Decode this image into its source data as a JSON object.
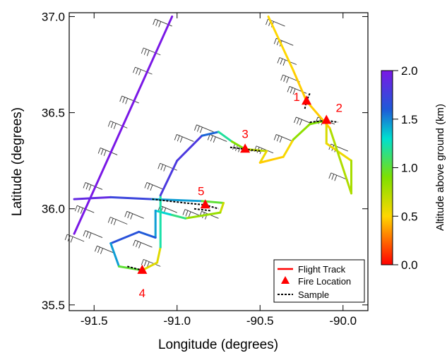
{
  "chart_data": {
    "type": "map",
    "xlabel": "Longitude (degrees)",
    "ylabel": "Latitude (degrees)",
    "xlim": [
      -91.65,
      -89.85
    ],
    "ylim": [
      35.47,
      37.02
    ],
    "xticks": [
      -91.5,
      -91.0,
      -90.5,
      -90.0
    ],
    "xtick_labels": [
      "-91.5",
      "-91.0",
      "-90.5",
      "-90.0"
    ],
    "yticks": [
      35.5,
      36.0,
      36.5,
      37.0
    ],
    "ytick_labels": [
      "35.5",
      "36.0",
      "36.5",
      "37.0"
    ],
    "colorbar": {
      "label": "Altitude above ground (km)",
      "range": [
        0.0,
        2.0
      ],
      "ticks": [
        0.0,
        0.5,
        1.0,
        1.5,
        2.0
      ],
      "tick_labels": [
        "0.0",
        "0.5",
        "1.0",
        "1.5",
        "2.0"
      ]
    },
    "legend": {
      "position": "bottom-right",
      "entries": [
        "Flight Track",
        "Fire Location",
        "Sample"
      ]
    },
    "fires": [
      {
        "label": "1",
        "lon": -90.22,
        "lat": 36.56
      },
      {
        "label": "2",
        "lon": -90.1,
        "lat": 36.46
      },
      {
        "label": "3",
        "lon": -90.59,
        "lat": 36.31
      },
      {
        "label": "4",
        "lon": -91.21,
        "lat": 35.68
      },
      {
        "label": "5",
        "lon": -90.83,
        "lat": 36.02
      }
    ],
    "flight_track": [
      {
        "lon": -91.62,
        "lat": 35.87,
        "alt": 2.0
      },
      {
        "lon": -91.03,
        "lat": 37.0,
        "alt": 2.0
      },
      {
        "lon": -91.62,
        "lat": 36.05,
        "alt": 1.95
      },
      {
        "lon": -91.4,
        "lat": 36.06,
        "alt": 1.85
      },
      {
        "lon": -91.15,
        "lat": 36.05,
        "alt": 1.6
      },
      {
        "lon": -90.85,
        "lat": 36.04,
        "alt": 1.3
      },
      {
        "lon": -90.72,
        "lat": 36.03,
        "alt": 0.7
      },
      {
        "lon": -90.74,
        "lat": 35.98,
        "alt": 0.6
      },
      {
        "lon": -90.95,
        "lat": 35.95,
        "alt": 1.05
      },
      {
        "lon": -91.04,
        "lat": 35.97,
        "alt": 1.25
      },
      {
        "lon": -91.13,
        "lat": 35.99,
        "alt": 1.4
      },
      {
        "lon": -91.13,
        "lat": 35.85,
        "alt": 1.5
      },
      {
        "lon": -91.23,
        "lat": 35.88,
        "alt": 1.7
      },
      {
        "lon": -91.4,
        "lat": 35.82,
        "alt": 1.6
      },
      {
        "lon": -91.35,
        "lat": 35.7,
        "alt": 1.3
      },
      {
        "lon": -91.21,
        "lat": 35.68,
        "alt": 0.7
      },
      {
        "lon": -91.12,
        "lat": 35.72,
        "alt": 0.5
      },
      {
        "lon": -91.1,
        "lat": 35.8,
        "alt": 0.7
      },
      {
        "lon": -91.1,
        "lat": 36.07,
        "alt": 1.75
      },
      {
        "lon": -91.0,
        "lat": 36.25,
        "alt": 1.85
      },
      {
        "lon": -90.85,
        "lat": 36.38,
        "alt": 1.75
      },
      {
        "lon": -90.75,
        "lat": 36.4,
        "alt": 1.4
      },
      {
        "lon": -90.67,
        "lat": 36.35,
        "alt": 1.0
      },
      {
        "lon": -90.59,
        "lat": 36.31,
        "alt": 0.8
      },
      {
        "lon": -90.46,
        "lat": 36.3,
        "alt": 0.6
      },
      {
        "lon": -90.5,
        "lat": 36.24,
        "alt": 0.5
      },
      {
        "lon": -90.36,
        "lat": 36.27,
        "alt": 0.45
      },
      {
        "lon": -90.3,
        "lat": 36.36,
        "alt": 0.6
      },
      {
        "lon": -90.2,
        "lat": 36.44,
        "alt": 1.1
      },
      {
        "lon": -90.1,
        "lat": 36.46,
        "alt": 0.7
      },
      {
        "lon": -90.1,
        "lat": 36.34,
        "alt": 0.55
      },
      {
        "lon": -89.95,
        "lat": 36.25,
        "alt": 0.55
      },
      {
        "lon": -89.95,
        "lat": 36.08,
        "alt": 1.0
      },
      {
        "lon": -90.08,
        "lat": 36.42,
        "alt": 0.5
      },
      {
        "lon": -90.22,
        "lat": 36.56,
        "alt": 0.45
      },
      {
        "lon": -90.3,
        "lat": 36.72,
        "alt": 0.5
      },
      {
        "lon": -90.45,
        "lat": 37.0,
        "alt": 0.5
      }
    ],
    "sample_segments": [
      [
        {
          "lon": -90.2,
          "lat": 36.6
        },
        {
          "lon": -90.22,
          "lat": 36.56
        },
        {
          "lon": -90.23,
          "lat": 36.52
        }
      ],
      [
        {
          "lon": -90.2,
          "lat": 36.45
        },
        {
          "lon": -90.1,
          "lat": 36.46
        },
        {
          "lon": -90.03,
          "lat": 36.45
        }
      ],
      [
        {
          "lon": -90.68,
          "lat": 36.32
        },
        {
          "lon": -90.59,
          "lat": 36.31
        },
        {
          "lon": -90.5,
          "lat": 36.3
        }
      ],
      [
        {
          "lon": -91.3,
          "lat": 35.7
        },
        {
          "lon": -91.21,
          "lat": 35.68
        }
      ],
      [
        {
          "lon": -91.15,
          "lat": 36.05
        },
        {
          "lon": -90.95,
          "lat": 36.03
        },
        {
          "lon": -90.83,
          "lat": 36.02
        },
        {
          "lon": -90.75,
          "lat": 36.0
        }
      ],
      [
        {
          "lon": -90.8,
          "lat": 35.99
        },
        {
          "lon": -90.9,
          "lat": 36.0
        }
      ]
    ],
    "wind_barbs": [
      {
        "lon": -91.56,
        "lat": 35.83
      },
      {
        "lon": -91.5,
        "lat": 35.98
      },
      {
        "lon": -91.45,
        "lat": 36.1
      },
      {
        "lon": -91.36,
        "lat": 36.28
      },
      {
        "lon": -91.3,
        "lat": 36.42
      },
      {
        "lon": -91.23,
        "lat": 36.55
      },
      {
        "lon": -91.15,
        "lat": 36.7
      },
      {
        "lon": -91.1,
        "lat": 36.8
      },
      {
        "lon": -91.03,
        "lat": 36.95
      },
      {
        "lon": -91.45,
        "lat": 35.85
      },
      {
        "lon": -91.38,
        "lat": 35.77
      },
      {
        "lon": -91.3,
        "lat": 35.92
      },
      {
        "lon": -91.2,
        "lat": 35.95
      },
      {
        "lon": -91.08,
        "lat": 36.1
      },
      {
        "lon": -91.0,
        "lat": 36.2
      },
      {
        "lon": -90.9,
        "lat": 36.35
      },
      {
        "lon": -90.78,
        "lat": 36.4
      },
      {
        "lon": -90.7,
        "lat": 36.35
      },
      {
        "lon": -90.55,
        "lat": 36.3
      },
      {
        "lon": -90.42,
        "lat": 36.29
      },
      {
        "lon": -90.3,
        "lat": 36.35
      },
      {
        "lon": -90.18,
        "lat": 36.44
      },
      {
        "lon": -90.05,
        "lat": 36.44
      },
      {
        "lon": -89.97,
        "lat": 36.3
      },
      {
        "lon": -89.97,
        "lat": 36.15
      },
      {
        "lon": -90.35,
        "lat": 36.95
      },
      {
        "lon": -90.3,
        "lat": 36.85
      },
      {
        "lon": -90.28,
        "lat": 36.75
      },
      {
        "lon": -90.26,
        "lat": 36.66
      },
      {
        "lon": -90.22,
        "lat": 36.6
      },
      {
        "lon": -91.0,
        "lat": 35.98
      },
      {
        "lon": -90.85,
        "lat": 35.96
      },
      {
        "lon": -90.75,
        "lat": 35.95
      },
      {
        "lon": -91.1,
        "lat": 35.7
      },
      {
        "lon": -91.15,
        "lat": 35.8
      }
    ]
  }
}
